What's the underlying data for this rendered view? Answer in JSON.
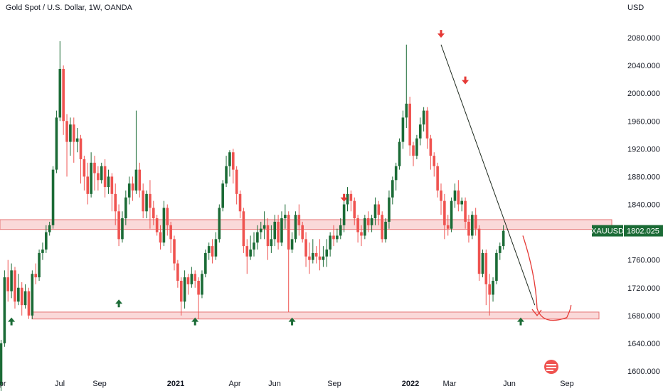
{
  "header": {
    "title": "Gold Spot / U.S. Dollar, 1W, OANDA",
    "currency": "USD"
  },
  "colors": {
    "up": "#1b6b36",
    "down": "#ef5350",
    "zone_fill": "#f9d2d2",
    "zone_stroke": "#e57373",
    "trend": "#1f2a1f",
    "arrow_up": "#1b6b36",
    "arrow_down": "#e53935"
  },
  "price_tag": {
    "symbol": "XAUUSD",
    "value": "1802.025"
  },
  "chart_data": {
    "type": "candlestick",
    "ylim": [
      1600,
      2100
    ],
    "yticks": [
      "1600.000",
      "1640.000",
      "1680.000",
      "1720.000",
      "1760.000",
      "1800.000",
      "1840.000",
      "1880.000",
      "1920.000",
      "1960.000",
      "2000.000",
      "2040.000",
      "2080.000"
    ],
    "xticks": [
      {
        "label": "Apr",
        "bold": false
      },
      {
        "label": "Jul",
        "bold": false
      },
      {
        "label": "Sep",
        "bold": false
      },
      {
        "label": "2021",
        "bold": true
      },
      {
        "label": "Apr",
        "bold": false
      },
      {
        "label": "Jun",
        "bold": false
      },
      {
        "label": "Sep",
        "bold": false
      },
      {
        "label": "2022",
        "bold": true
      },
      {
        "label": "Mar",
        "bold": false
      },
      {
        "label": "Jun",
        "bold": false
      },
      {
        "label": "Sep",
        "bold": false
      }
    ],
    "candles": [
      [
        1580,
        1640,
        1570,
        1645
      ],
      [
        1640,
        1735,
        1635,
        1745
      ],
      [
        1735,
        1715,
        1700,
        1760
      ],
      [
        1715,
        1745,
        1705,
        1755
      ],
      [
        1745,
        1700,
        1690,
        1750
      ],
      [
        1700,
        1720,
        1695,
        1740
      ],
      [
        1720,
        1695,
        1680,
        1728
      ],
      [
        1695,
        1715,
        1690,
        1725
      ],
      [
        1715,
        1680,
        1675,
        1720
      ],
      [
        1680,
        1740,
        1675,
        1745
      ],
      [
        1740,
        1735,
        1725,
        1755
      ],
      [
        1735,
        1770,
        1730,
        1775
      ],
      [
        1770,
        1775,
        1760,
        1785
      ],
      [
        1775,
        1800,
        1770,
        1810
      ],
      [
        1800,
        1810,
        1795,
        1815
      ],
      [
        1810,
        1890,
        1805,
        1895
      ],
      [
        1890,
        1965,
        1885,
        1975
      ],
      [
        1965,
        2035,
        1960,
        2075
      ],
      [
        2035,
        1960,
        1940,
        2040
      ],
      [
        1960,
        1930,
        1880,
        1970
      ],
      [
        1930,
        1955,
        1910,
        1965
      ],
      [
        1955,
        1930,
        1900,
        1965
      ],
      [
        1930,
        1935,
        1915,
        1950
      ],
      [
        1935,
        1905,
        1870,
        1940
      ],
      [
        1905,
        1880,
        1860,
        1910
      ],
      [
        1880,
        1855,
        1840,
        1900
      ],
      [
        1855,
        1900,
        1850,
        1915
      ],
      [
        1900,
        1885,
        1860,
        1910
      ],
      [
        1885,
        1875,
        1860,
        1895
      ],
      [
        1875,
        1895,
        1870,
        1900
      ],
      [
        1895,
        1865,
        1850,
        1905
      ],
      [
        1865,
        1880,
        1855,
        1890
      ],
      [
        1880,
        1855,
        1830,
        1885
      ],
      [
        1855,
        1830,
        1810,
        1870
      ],
      [
        1830,
        1790,
        1780,
        1840
      ],
      [
        1790,
        1820,
        1785,
        1830
      ],
      [
        1820,
        1850,
        1810,
        1860
      ],
      [
        1850,
        1870,
        1840,
        1880
      ],
      [
        1870,
        1860,
        1845,
        1880
      ],
      [
        1860,
        1890,
        1855,
        1975
      ],
      [
        1890,
        1860,
        1850,
        1900
      ],
      [
        1860,
        1830,
        1820,
        1870
      ],
      [
        1830,
        1855,
        1820,
        1860
      ],
      [
        1855,
        1835,
        1805,
        1875
      ],
      [
        1835,
        1820,
        1810,
        1845
      ],
      [
        1820,
        1800,
        1795,
        1825
      ],
      [
        1800,
        1785,
        1775,
        1810
      ],
      [
        1785,
        1835,
        1780,
        1845
      ],
      [
        1835,
        1810,
        1795,
        1840
      ],
      [
        1810,
        1790,
        1770,
        1815
      ],
      [
        1790,
        1755,
        1745,
        1795
      ],
      [
        1755,
        1730,
        1720,
        1760
      ],
      [
        1730,
        1700,
        1680,
        1735
      ],
      [
        1700,
        1735,
        1690,
        1745
      ],
      [
        1735,
        1725,
        1710,
        1740
      ],
      [
        1725,
        1740,
        1720,
        1750
      ],
      [
        1740,
        1730,
        1720,
        1745
      ],
      [
        1730,
        1710,
        1675,
        1735
      ],
      [
        1710,
        1740,
        1705,
        1745
      ],
      [
        1740,
        1770,
        1735,
        1775
      ],
      [
        1770,
        1780,
        1760,
        1785
      ],
      [
        1780,
        1765,
        1755,
        1790
      ],
      [
        1765,
        1790,
        1760,
        1800
      ],
      [
        1790,
        1835,
        1785,
        1840
      ],
      [
        1835,
        1870,
        1830,
        1875
      ],
      [
        1870,
        1895,
        1865,
        1910
      ],
      [
        1895,
        1915,
        1880,
        1918
      ],
      [
        1915,
        1890,
        1870,
        1920
      ],
      [
        1890,
        1855,
        1840,
        1895
      ],
      [
        1855,
        1830,
        1820,
        1860
      ],
      [
        1830,
        1780,
        1770,
        1835
      ],
      [
        1780,
        1765,
        1740,
        1790
      ],
      [
        1765,
        1775,
        1760,
        1795
      ],
      [
        1775,
        1785,
        1765,
        1800
      ],
      [
        1785,
        1800,
        1775,
        1810
      ],
      [
        1800,
        1805,
        1790,
        1815
      ],
      [
        1805,
        1810,
        1790,
        1830
      ],
      [
        1810,
        1780,
        1760,
        1820
      ],
      [
        1780,
        1790,
        1770,
        1810
      ],
      [
        1790,
        1815,
        1780,
        1825
      ],
      [
        1815,
        1785,
        1775,
        1825
      ],
      [
        1785,
        1820,
        1780,
        1830
      ],
      [
        1820,
        1825,
        1805,
        1840
      ],
      [
        1825,
        1775,
        1685,
        1830
      ],
      [
        1775,
        1790,
        1770,
        1800
      ],
      [
        1790,
        1825,
        1785,
        1830
      ],
      [
        1825,
        1810,
        1795,
        1840
      ],
      [
        1810,
        1790,
        1785,
        1815
      ],
      [
        1790,
        1765,
        1750,
        1800
      ],
      [
        1765,
        1760,
        1740,
        1785
      ],
      [
        1760,
        1770,
        1755,
        1790
      ],
      [
        1770,
        1765,
        1755,
        1780
      ],
      [
        1765,
        1760,
        1745,
        1790
      ],
      [
        1760,
        1765,
        1750,
        1780
      ],
      [
        1765,
        1775,
        1750,
        1790
      ],
      [
        1775,
        1795,
        1765,
        1800
      ],
      [
        1795,
        1790,
        1780,
        1810
      ],
      [
        1790,
        1795,
        1785,
        1805
      ],
      [
        1795,
        1810,
        1790,
        1820
      ],
      [
        1810,
        1840,
        1800,
        1845
      ],
      [
        1840,
        1855,
        1830,
        1865
      ],
      [
        1855,
        1845,
        1830,
        1860
      ],
      [
        1845,
        1820,
        1810,
        1850
      ],
      [
        1820,
        1800,
        1785,
        1825
      ],
      [
        1800,
        1795,
        1780,
        1810
      ],
      [
        1795,
        1820,
        1790,
        1825
      ],
      [
        1820,
        1810,
        1800,
        1830
      ],
      [
        1810,
        1820,
        1800,
        1825
      ],
      [
        1820,
        1840,
        1810,
        1850
      ],
      [
        1840,
        1825,
        1810,
        1845
      ],
      [
        1825,
        1790,
        1785,
        1830
      ],
      [
        1790,
        1815,
        1785,
        1820
      ],
      [
        1815,
        1850,
        1805,
        1860
      ],
      [
        1850,
        1875,
        1840,
        1880
      ],
      [
        1875,
        1895,
        1860,
        1900
      ],
      [
        1895,
        1930,
        1890,
        1935
      ],
      [
        1930,
        1965,
        1920,
        1975
      ],
      [
        1965,
        1985,
        1950,
        2070
      ],
      [
        1985,
        1925,
        1910,
        1995
      ],
      [
        1925,
        1910,
        1895,
        1930
      ],
      [
        1910,
        1935,
        1905,
        1940
      ],
      [
        1935,
        1955,
        1925,
        1965
      ],
      [
        1955,
        1975,
        1945,
        1980
      ],
      [
        1975,
        1935,
        1920,
        1980
      ],
      [
        1935,
        1910,
        1890,
        1940
      ],
      [
        1910,
        1895,
        1880,
        1915
      ],
      [
        1895,
        1860,
        1850,
        1900
      ],
      [
        1860,
        1845,
        1825,
        1870
      ],
      [
        1845,
        1810,
        1790,
        1855
      ],
      [
        1810,
        1805,
        1795,
        1825
      ],
      [
        1805,
        1845,
        1800,
        1850
      ],
      [
        1845,
        1860,
        1835,
        1870
      ],
      [
        1860,
        1840,
        1830,
        1875
      ],
      [
        1840,
        1845,
        1830,
        1850
      ],
      [
        1845,
        1815,
        1805,
        1850
      ],
      [
        1815,
        1795,
        1785,
        1825
      ],
      [
        1795,
        1825,
        1790,
        1830
      ],
      [
        1825,
        1805,
        1795,
        1835
      ],
      [
        1805,
        1740,
        1730,
        1810
      ],
      [
        1740,
        1770,
        1735,
        1775
      ],
      [
        1770,
        1725,
        1695,
        1775
      ],
      [
        1725,
        1710,
        1680,
        1740
      ],
      [
        1710,
        1730,
        1700,
        1735
      ],
      [
        1730,
        1770,
        1725,
        1775
      ],
      [
        1770,
        1780,
        1760,
        1785
      ],
      [
        1780,
        1802,
        1775,
        1810
      ]
    ],
    "annotations": [
      {
        "type": "zone",
        "label": "resistance",
        "low": 1804,
        "high": 1818
      },
      {
        "type": "zone",
        "label": "support",
        "low": 1675,
        "high": 1685
      },
      {
        "type": "trendline",
        "from": [
          127,
          2070
        ],
        "to": [
          152,
          1695
        ]
      },
      {
        "type": "projection",
        "from": [
          150,
          1795
        ],
        "to": [
          160,
          1700
        ]
      },
      {
        "type": "arrow",
        "dir": "up",
        "at": [
          3,
          1671
        ]
      },
      {
        "type": "arrow",
        "dir": "up",
        "at": [
          34,
          1697
        ]
      },
      {
        "type": "arrow",
        "dir": "up",
        "at": [
          56,
          1671
        ]
      },
      {
        "type": "arrow",
        "dir": "up",
        "at": [
          84,
          1671
        ]
      },
      {
        "type": "arrow",
        "dir": "down",
        "at": [
          99,
          1850
        ]
      },
      {
        "type": "arrow",
        "dir": "down",
        "at": [
          127,
          2086
        ]
      },
      {
        "type": "arrow",
        "dir": "down",
        "at": [
          134,
          2019
        ]
      },
      {
        "type": "arrow",
        "dir": "up",
        "at": [
          150,
          1671
        ]
      }
    ]
  }
}
